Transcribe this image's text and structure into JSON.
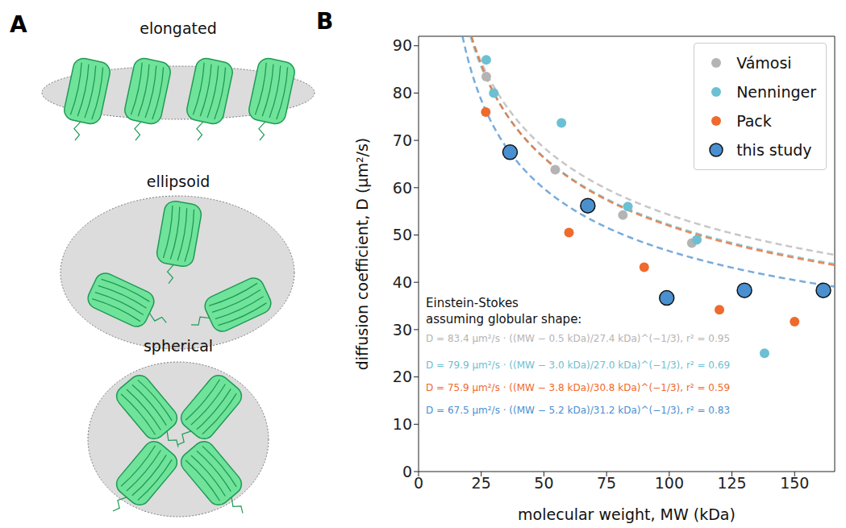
{
  "panel_a": {
    "letter": "A",
    "shapes": [
      "elongated",
      "ellipsoid",
      "spherical"
    ]
  },
  "panel_b": {
    "letter": "B"
  },
  "chart_data": {
    "type": "scatter",
    "x_label": "molecular weight, MW (kDa)",
    "y_label": "diffusion coefficient, D (μm²/s)",
    "xlim": [
      0,
      166
    ],
    "xticks": [
      0,
      25,
      50,
      75,
      100,
      125,
      150
    ],
    "ylim": [
      0,
      92
    ],
    "yticks": [
      0,
      10,
      20,
      30,
      40,
      50,
      60,
      70,
      80,
      90
    ],
    "grid": false,
    "legend": "upper right",
    "annotation": [
      "Einstein-Stokes",
      "assuming globular shape:"
    ],
    "series": [
      {
        "name": "Vámosi",
        "color": "#b4b4b4",
        "marker": "circle",
        "x": [
          27,
          54.5,
          81.5,
          109
        ],
        "values": [
          83.5,
          63.8,
          54.2,
          48.3
        ],
        "fit": {
          "text": "D = 83.4 μm²/s · ((MW − 0.5 kDa)/27.4 kDa)^(−1/3), r² = 0.95",
          "D0": 83.4,
          "MW0": 0.5,
          "MWscale": 27.4,
          "line_style": "dashed"
        }
      },
      {
        "name": "Nenninger",
        "color": "#6cc0d3",
        "marker": "circle",
        "x": [
          27,
          30,
          57,
          83.5,
          111,
          138
        ],
        "values": [
          87,
          80,
          73.7,
          56,
          49,
          25
        ],
        "fit": {
          "text": "D = 79.9 μm²/s · ((MW − 3.0 kDa)/27.0 kDa)^(−1/3), r² = 0.69",
          "D0": 79.9,
          "MW0": 3.0,
          "MWscale": 27.0,
          "line_style": "dashed"
        }
      },
      {
        "name": "Pack",
        "color": "#ef6a2c",
        "marker": "circle",
        "x": [
          26.8,
          60,
          90,
          120,
          150
        ],
        "values": [
          76,
          50.5,
          43.2,
          34.2,
          31.7
        ],
        "fit": {
          "text": "D = 75.9 μm²/s · ((MW − 3.8 kDa)/30.8 kDa)^(−1/3), r² = 0.59",
          "D0": 75.9,
          "MW0": 3.8,
          "MWscale": 30.8,
          "line_style": "dashed"
        }
      },
      {
        "name": "this study",
        "color": "#4a90d0",
        "marker": "circle-outlined",
        "x": [
          36.5,
          67.5,
          99,
          130,
          161.5
        ],
        "values": [
          67.5,
          56.2,
          36.7,
          38.3,
          38.3
        ],
        "fit": {
          "text": "D = 67.5 μm²/s · ((MW − 5.2 kDa)/31.2 kDa)^(−1/3), r² = 0.83",
          "D0": 67.5,
          "MW0": 5.2,
          "MWscale": 31.2,
          "line_style": "dashed"
        }
      }
    ]
  }
}
